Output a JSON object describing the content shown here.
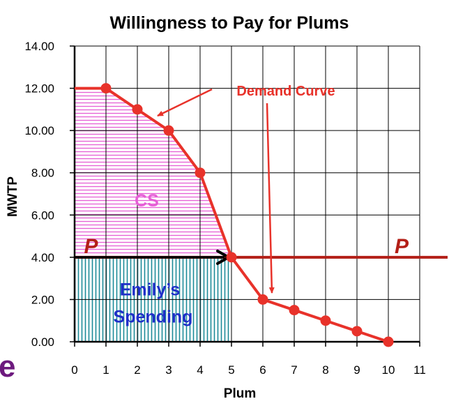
{
  "chart_data": {
    "type": "line",
    "title": "Willingness to Pay for Plums",
    "xlabel": "Plum",
    "ylabel": "MWTP",
    "xlim": [
      0,
      11
    ],
    "ylim": [
      0,
      14
    ],
    "x_ticks": [
      "0",
      "1",
      "2",
      "3",
      "4",
      "5",
      "6",
      "7",
      "8",
      "9",
      "10",
      "11"
    ],
    "y_ticks": [
      "0.00",
      "2.00",
      "4.00",
      "6.00",
      "8.00",
      "10.00",
      "12.00",
      "14.00"
    ],
    "grid": true,
    "series": [
      {
        "name": "Demand Curve",
        "x": [
          0,
          1,
          2,
          3,
          4,
          5,
          6,
          7,
          8,
          9,
          10
        ],
        "y": [
          12,
          12,
          11,
          10,
          8,
          4,
          2,
          1.5,
          1,
          0.5,
          0
        ],
        "markers_from_x": 1
      }
    ],
    "price_line": {
      "label": "P",
      "value": 4
    },
    "quantity_bought": 5,
    "annotations": {
      "demand_label": "Demand Curve",
      "cs_label": "CS",
      "spending_label_1": "Emily’s",
      "spending_label_2": "Spending"
    },
    "colors": {
      "curve": "#e8322a",
      "price_line": "#b31f17",
      "cs_hatch": "#e65fd6",
      "spending_hatch": "#1b8a98",
      "spending_text": "#1f2fc8"
    }
  },
  "edge_glyph": "e"
}
